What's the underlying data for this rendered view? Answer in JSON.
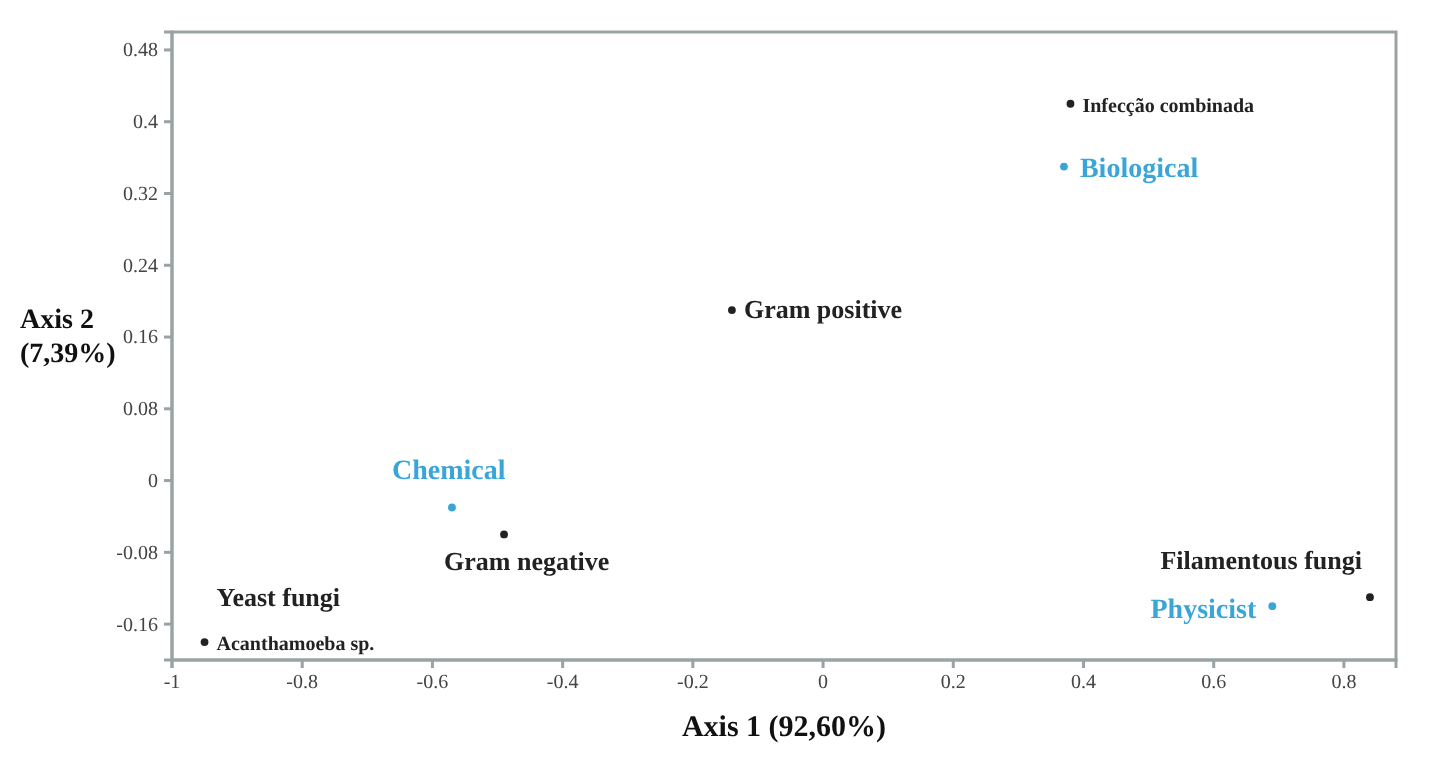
{
  "chart_data": {
    "type": "scatter",
    "xlabel": "Axis 1 (92,60%)",
    "ylabel": "Axis 2 (7,39%)",
    "xlim": [
      -1,
      0.88
    ],
    "xticks": [
      -1,
      -0.8,
      -0.6,
      -0.4,
      -0.2,
      0,
      0.2,
      0.4,
      0.6,
      0.8
    ],
    "ylim": [
      -0.2,
      0.5
    ],
    "yticks": [
      -0.16,
      -0.08,
      0,
      0.08,
      0.16,
      0.24,
      0.32,
      0.4,
      0.48
    ],
    "grid": false,
    "marker": "circle",
    "series": [
      {
        "color": "#222222",
        "x": [
          0.38,
          -0.14,
          -0.49,
          -0.95,
          0.84
        ],
        "values": [
          0.42,
          0.19,
          -0.06,
          -0.18,
          -0.13
        ]
      },
      {
        "color": "#3aa6d8",
        "x": [
          0.37,
          -0.57,
          0.69
        ],
        "values": [
          0.35,
          -0.03,
          -0.14
        ]
      }
    ],
    "annotations": [
      {
        "text": "Infecção combinada",
        "x": 0.38,
        "y": 0.42
      },
      {
        "text": "Gram positive",
        "x": -0.14,
        "y": 0.19
      },
      {
        "text": "Gram negative",
        "x": -0.49,
        "y": -0.06
      },
      {
        "text": "Acanthamoeba sp.",
        "x": -0.95,
        "y": -0.18
      },
      {
        "text": "Yeast fungi",
        "x": -0.95,
        "y": -0.18
      },
      {
        "text": "Filamentous fungi",
        "x": 0.84,
        "y": -0.13
      },
      {
        "text": "Biological",
        "x": 0.37,
        "y": 0.35
      },
      {
        "text": "Chemical",
        "x": -0.57,
        "y": -0.03
      },
      {
        "text": "Physicist",
        "x": 0.69,
        "y": -0.14
      }
    ]
  }
}
